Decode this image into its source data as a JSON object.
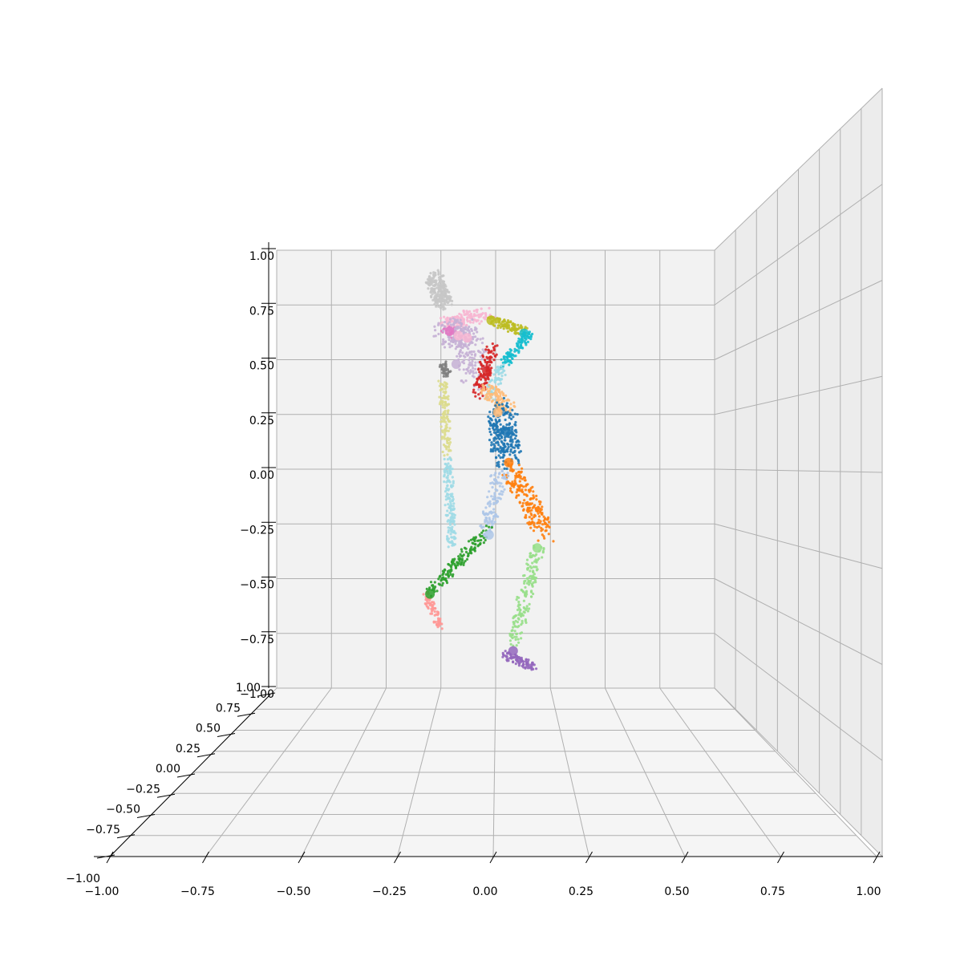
{
  "chart_data": {
    "type": "scatter",
    "projection": "3d",
    "title": "",
    "xlabel": "",
    "ylabel": "",
    "zlabel": "",
    "grid": true,
    "legend": "none",
    "xlim": [
      -1.0,
      1.0
    ],
    "ylim": [
      -1.0,
      1.0
    ],
    "zlim": [
      -1.0,
      1.0
    ],
    "x_ticks": [
      "−1.00",
      "−0.75",
      "−0.50",
      "−0.25",
      "0.00",
      "0.25",
      "0.50",
      "0.75",
      "1.00"
    ],
    "y_ticks": [
      "−1.00",
      "−0.75",
      "−0.50",
      "−0.25",
      "0.00",
      "0.25",
      "0.50",
      "0.75",
      "1.00"
    ],
    "z_ticks": [
      "−1.00",
      "−0.75",
      "−0.50",
      "−0.25",
      "0.00",
      "0.25",
      "0.50",
      "0.75",
      "1.00"
    ],
    "segments": [
      {
        "part": "head",
        "color": "#c7c7c7",
        "joint": null,
        "path": [
          [
            -0.28,
            0.88
          ],
          [
            -0.26,
            0.82
          ],
          [
            -0.24,
            0.75
          ]
        ],
        "radius": 0.045,
        "count": 220
      },
      {
        "part": "neck",
        "color": "#f7b6d2",
        "joint": [
          -0.17,
          0.61
        ],
        "path": [
          [
            -0.23,
            0.67
          ],
          [
            -0.15,
            0.67
          ]
        ],
        "radius": 0.03,
        "count": 60
      },
      {
        "part": "left-collar",
        "color": "#e377c2",
        "joint": [
          -0.21,
          0.63
        ],
        "path": [
          [
            -0.23,
            0.64
          ],
          [
            -0.19,
            0.62
          ]
        ],
        "radius": 0.025,
        "count": 30
      },
      {
        "part": "upper-chest",
        "color": "#f7b6d2",
        "joint": [
          -0.13,
          0.6
        ],
        "path": [
          [
            -0.17,
            0.68
          ],
          [
            -0.03,
            0.7
          ]
        ],
        "radius": 0.04,
        "count": 80
      },
      {
        "part": "chest",
        "color": "#c5b0d5",
        "joint": [
          -0.18,
          0.48
        ],
        "path": [
          [
            -0.24,
            0.62
          ],
          [
            -0.13,
            0.62
          ],
          [
            -0.09,
            0.42
          ]
        ],
        "radius": 0.07,
        "count": 260
      },
      {
        "part": "right-shoulder",
        "color": "#d62728",
        "joint": [
          -0.04,
          0.45
        ],
        "path": [
          [
            -0.02,
            0.55
          ],
          [
            -0.08,
            0.35
          ]
        ],
        "radius": 0.035,
        "count": 120
      },
      {
        "part": "right-upper-arm",
        "color": "#bcbd22",
        "joint": [
          -0.02,
          0.68
        ],
        "path": [
          [
            -0.02,
            0.68
          ],
          [
            0.13,
            0.63
          ]
        ],
        "radius": 0.025,
        "count": 110
      },
      {
        "part": "right-forearm",
        "color": "#17becf",
        "joint": [
          0.13,
          0.62
        ],
        "path": [
          [
            0.15,
            0.62
          ],
          [
            0.03,
            0.47
          ]
        ],
        "radius": 0.025,
        "count": 110
      },
      {
        "part": "right-hand",
        "color": "#9edae5",
        "joint": null,
        "path": [
          [
            0.03,
            0.47
          ],
          [
            -0.03,
            0.33
          ]
        ],
        "radius": 0.03,
        "count": 70
      },
      {
        "part": "spine",
        "color": "#ffbb78",
        "joint": [
          0.01,
          0.26
        ],
        "path": [
          [
            -0.04,
            0.36
          ],
          [
            0.06,
            0.28
          ]
        ],
        "radius": 0.04,
        "count": 110
      },
      {
        "part": "pelvis",
        "color": "#1f77b4",
        "joint": [
          0.05,
          0.17
        ],
        "path": [
          [
            0.03,
            0.26
          ],
          [
            0.05,
            0.05
          ]
        ],
        "radius": 0.07,
        "count": 260
      },
      {
        "part": "left-hip",
        "color": "#ff7f0e",
        "joint": [
          0.06,
          0.03
        ],
        "path": [
          [
            0.07,
            0.0
          ],
          [
            0.23,
            -0.3
          ]
        ],
        "radius": 0.05,
        "count": 210
      },
      {
        "part": "left-shin",
        "color": "#98df8a",
        "joint": [
          0.19,
          -0.36
        ],
        "path": [
          [
            0.19,
            -0.36
          ],
          [
            0.08,
            -0.8
          ]
        ],
        "radius": 0.035,
        "count": 170
      },
      {
        "part": "left-foot",
        "color": "#9467bd",
        "joint": [
          0.08,
          -0.83
        ],
        "path": [
          [
            0.04,
            -0.85
          ],
          [
            0.17,
            -0.9
          ]
        ],
        "radius": 0.022,
        "count": 90
      },
      {
        "part": "right-hip",
        "color": "#aec7e8",
        "joint": [
          -0.03,
          -0.3
        ],
        "path": [
          [
            0.02,
            -0.02
          ],
          [
            -0.04,
            -0.28
          ]
        ],
        "radius": 0.04,
        "count": 120
      },
      {
        "part": "right-shin",
        "color": "#2ca02c",
        "joint": [
          -0.3,
          -0.57
        ],
        "path": [
          [
            -0.04,
            -0.28
          ],
          [
            -0.3,
            -0.56
          ]
        ],
        "radius": 0.03,
        "count": 150
      },
      {
        "part": "right-foot",
        "color": "#ff9896",
        "joint": null,
        "path": [
          [
            -0.32,
            -0.57
          ],
          [
            -0.25,
            -0.73
          ]
        ],
        "radius": 0.02,
        "count": 70
      },
      {
        "part": "left-shoulder",
        "color": "#7f7f7f",
        "joint": null,
        "path": [
          [
            -0.24,
            0.48
          ],
          [
            -0.22,
            0.43
          ]
        ],
        "radius": 0.02,
        "count": 40
      },
      {
        "part": "left-upper-arm",
        "color": "#dbdb8d",
        "joint": null,
        "path": [
          [
            -0.24,
            0.4
          ],
          [
            -0.22,
            0.06
          ]
        ],
        "radius": 0.022,
        "count": 120
      },
      {
        "part": "left-forearm",
        "color": "#9edae5",
        "joint": null,
        "path": [
          [
            -0.22,
            0.06
          ],
          [
            -0.2,
            -0.35
          ]
        ],
        "radius": 0.022,
        "count": 160
      }
    ]
  }
}
